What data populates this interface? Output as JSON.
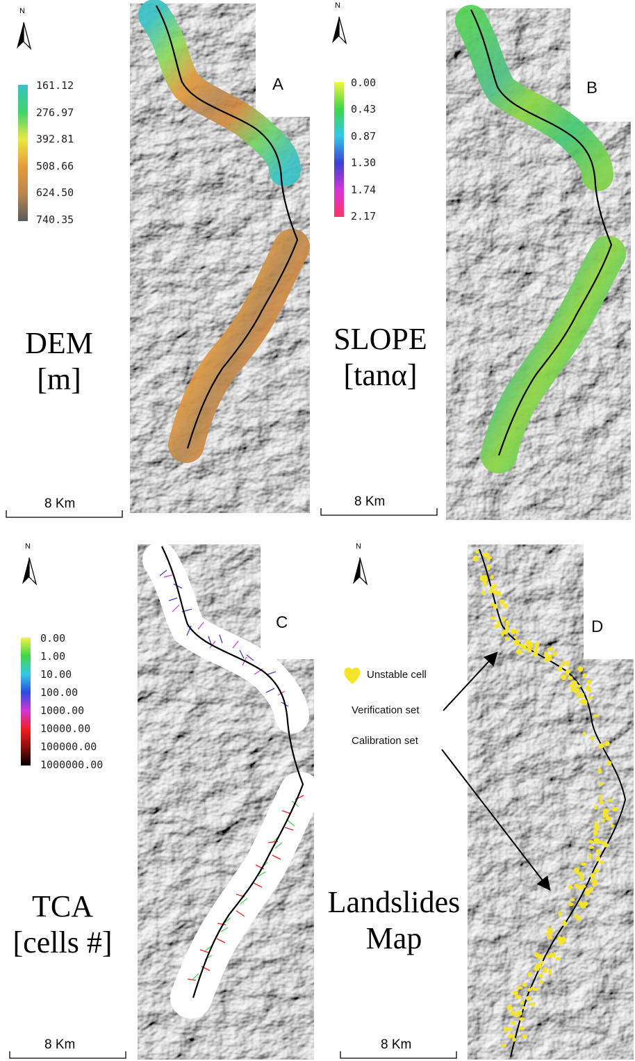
{
  "panels": {
    "A": {
      "letter": "A",
      "title_line1": "DEM",
      "title_line2": "[m]",
      "legend": [
        "161.12",
        "276.97",
        "392.81",
        "508.66",
        "624.50",
        "740.35"
      ],
      "legend_colors": [
        "#39c2c4",
        "#3ed46a",
        "#e8e843",
        "#e79a3a",
        "#b7874f",
        "#5b5b5b"
      ],
      "scale": "8 Km"
    },
    "B": {
      "letter": "B",
      "title_line1": "SLOPE",
      "title_line2": "[tanα]",
      "legend": [
        "0.00",
        "0.43",
        "0.87",
        "1.30",
        "1.74",
        "2.17"
      ],
      "legend_colors": [
        "#f4f440",
        "#3ed64a",
        "#33c9e6",
        "#3b3fd8",
        "#d534d8",
        "#ff3565"
      ],
      "scale": "8 Km"
    },
    "C": {
      "letter": "C",
      "title_line1": "TCA",
      "title_line2": "[cells #]",
      "legend": [
        "0.00",
        "1.00",
        "10.00",
        "100.00",
        "1000.00",
        "10000.00",
        "100000.00",
        "1000000.00"
      ],
      "legend_colors": [
        "#f4f440",
        "#3ed64a",
        "#33c9e6",
        "#2d4ce0",
        "#d534d8",
        "#f02020",
        "#8a0d0d",
        "#000000"
      ],
      "scale": "8 Km"
    },
    "D": {
      "letter": "D",
      "title_line1": "Landslides",
      "title_line2": "Map",
      "unstable_label": "Unstable cell",
      "verification_label": "Verification set",
      "calibration_label": "Calibration set",
      "unstable_color": "#f5e52a",
      "scale": "8 Km"
    }
  },
  "north_label": "N"
}
